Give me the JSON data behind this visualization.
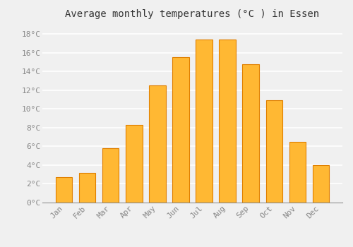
{
  "title": "Average monthly temperatures (°C ) in Essen",
  "months": [
    "Jan",
    "Feb",
    "Mar",
    "Apr",
    "May",
    "Jun",
    "Jul",
    "Aug",
    "Sep",
    "Oct",
    "Nov",
    "Dec"
  ],
  "values": [
    2.7,
    3.2,
    5.8,
    8.3,
    12.5,
    15.5,
    17.4,
    17.4,
    14.8,
    10.9,
    6.5,
    4.0
  ],
  "bar_color": "#FFB833",
  "bar_edge_color": "#E08000",
  "background_color": "#F0F0F0",
  "plot_background_color": "#F0F0F0",
  "grid_color": "#FFFFFF",
  "ylim": [
    0,
    19
  ],
  "yticks": [
    0,
    2,
    4,
    6,
    8,
    10,
    12,
    14,
    16,
    18
  ],
  "title_fontsize": 10,
  "tick_fontsize": 8,
  "tick_font_color": "#888888",
  "font_family": "monospace"
}
